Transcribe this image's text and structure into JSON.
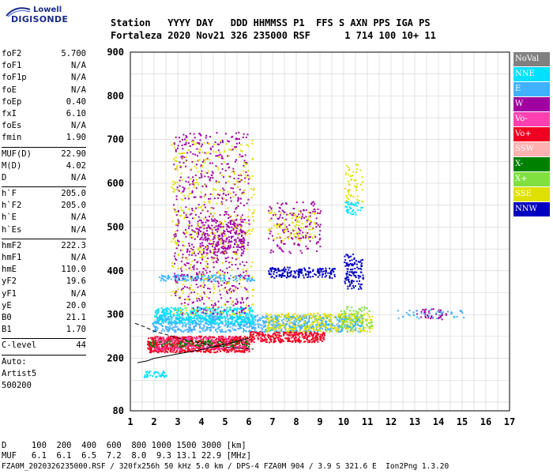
{
  "logo": {
    "line1": "Lowell",
    "line2": "DIGISONDE"
  },
  "header": {
    "line1": "Station   YYYY DAY   DDD HHMMSS P1  FFS S AXN PPS IGA PS",
    "line2": "Fortaleza 2020 Nov21 326 235000 RSF      1 714 100 10+ 11"
  },
  "params": {
    "group1": [
      {
        "k": "foF2",
        "v": "5.700"
      },
      {
        "k": "foF1",
        "v": "N/A"
      },
      {
        "k": "foF1p",
        "v": "N/A"
      },
      {
        "k": "foE",
        "v": "N/A"
      },
      {
        "k": "foEp",
        "v": "0.40"
      },
      {
        "k": "fxI",
        "v": "6.10"
      },
      {
        "k": "foEs",
        "v": "N/A"
      },
      {
        "k": "fmin",
        "v": "1.90"
      }
    ],
    "group2": [
      {
        "k": "MUF(D)",
        "v": "22.90"
      },
      {
        "k": "M(D)",
        "v": "4.02"
      },
      {
        "k": "D",
        "v": "N/A"
      }
    ],
    "group3": [
      {
        "k": "h`F",
        "v": "205.0"
      },
      {
        "k": "h`F2",
        "v": "205.0"
      },
      {
        "k": "h`E",
        "v": "N/A"
      },
      {
        "k": "h`Es",
        "v": "N/A"
      }
    ],
    "group4": [
      {
        "k": "hmF2",
        "v": "222.3"
      },
      {
        "k": "hmF1",
        "v": "N/A"
      },
      {
        "k": "hmE",
        "v": "110.0"
      },
      {
        "k": "yF2",
        "v": "19.6"
      },
      {
        "k": "yF1",
        "v": "N/A"
      },
      {
        "k": "yE",
        "v": "20.0"
      },
      {
        "k": "B0",
        "v": "21.1"
      },
      {
        "k": "B1",
        "v": "1.70"
      }
    ],
    "clevel": {
      "k": "C-level",
      "v": "44"
    },
    "auto": [
      "Auto:",
      "Artist5",
      "500200"
    ]
  },
  "legend": [
    {
      "label": "NoVal",
      "color": "#808080"
    },
    {
      "label": "NNE",
      "color": "#00e0ff"
    },
    {
      "label": "E",
      "color": "#40b0ff"
    },
    {
      "label": "W",
      "color": "#a000a0"
    },
    {
      "label": "Vo-",
      "color": "#ff40b0"
    },
    {
      "label": "Vo+",
      "color": "#f00020"
    },
    {
      "label": "SSW",
      "color": "#ffb0b0"
    },
    {
      "label": "X-",
      "color": "#008000"
    },
    {
      "label": "X+",
      "color": "#80e040"
    },
    {
      "label": "SSE",
      "color": "#e0e000"
    },
    {
      "label": "NNW",
      "color": "#0000c0"
    }
  ],
  "footer": {
    "line1": "D     100  200  400  600  800 1000 1500 3000 [km]",
    "line2": "MUF   6.1  6.1  6.5  7.2  8.0  9.3 13.1 22.9 [MHz]",
    "line3": "FZA0M_2020326235000.RSF / 320fx256h 50 kHz 5.0 km / DPS-4 FZA0M 904 / 3.9 S 321.6 E  Ion2Png 1.3.20"
  },
  "chart_data": {
    "type": "scatter",
    "xlim": [
      1,
      17
    ],
    "ylim": [
      80,
      900
    ],
    "xticks": [
      1,
      2,
      3,
      4,
      5,
      6,
      7,
      8,
      9,
      10,
      11,
      12,
      13,
      14,
      15,
      16,
      17
    ],
    "yticks": [
      80,
      200,
      300,
      400,
      500,
      600,
      700,
      800,
      900
    ],
    "grid": true,
    "clusters": [
      {
        "color": "#40b0ff",
        "x": [
          1.9,
          10.8
        ],
        "y": [
          262,
          300
        ],
        "n": 950
      },
      {
        "color": "#00e0ff",
        "x": [
          2.0,
          6.2
        ],
        "y": [
          280,
          318
        ],
        "n": 420
      },
      {
        "color": "#40b0ff",
        "x": [
          2.2,
          6.2
        ],
        "y": [
          378,
          392
        ],
        "n": 160
      },
      {
        "color": "#00e0ff",
        "x": [
          1.5,
          2.5
        ],
        "y": [
          158,
          172
        ],
        "n": 40
      },
      {
        "color": "#00e0ff",
        "x": [
          10.0,
          10.8
        ],
        "y": [
          530,
          560
        ],
        "n": 40
      },
      {
        "color": "#f00020",
        "x": [
          1.7,
          6.0
        ],
        "y": [
          215,
          252
        ],
        "n": 750
      },
      {
        "color": "#f00020",
        "x": [
          6.0,
          9.2
        ],
        "y": [
          238,
          262
        ],
        "n": 280
      },
      {
        "color": "#ff40b0",
        "x": [
          2.0,
          6.0
        ],
        "y": [
          220,
          250
        ],
        "n": 180
      },
      {
        "color": "#a000a0",
        "x": [
          2.8,
          6.0
        ],
        "y": [
          300,
          720
        ],
        "n": 650
      },
      {
        "color": "#a000a0",
        "x": [
          3.8,
          5.8
        ],
        "y": [
          440,
          520
        ],
        "n": 260
      },
      {
        "color": "#a000a0",
        "x": [
          6.8,
          9.0
        ],
        "y": [
          440,
          560
        ],
        "n": 160
      },
      {
        "color": "#e0e000",
        "x": [
          2.7,
          6.2
        ],
        "y": [
          300,
          700
        ],
        "n": 420
      },
      {
        "color": "#e0e000",
        "x": [
          6.7,
          11.2
        ],
        "y": [
          262,
          305
        ],
        "n": 320
      },
      {
        "color": "#e0e000",
        "x": [
          6.8,
          8.8
        ],
        "y": [
          470,
          540
        ],
        "n": 100
      },
      {
        "color": "#0000c0",
        "x": [
          6.8,
          9.6
        ],
        "y": [
          385,
          410
        ],
        "n": 180
      },
      {
        "color": "#0000c0",
        "x": [
          10.0,
          10.8
        ],
        "y": [
          360,
          440
        ],
        "n": 120
      },
      {
        "color": "#80e040",
        "x": [
          9.8,
          11.2
        ],
        "y": [
          270,
          320
        ],
        "n": 80
      },
      {
        "color": "#008000",
        "x": [
          1.8,
          6.0
        ],
        "y": [
          228,
          242
        ],
        "n": 100
      },
      {
        "color": "#a000a0",
        "x": [
          13.0,
          14.3
        ],
        "y": [
          290,
          315
        ],
        "n": 40
      },
      {
        "color": "#40b0ff",
        "x": [
          12.2,
          15.2
        ],
        "y": [
          292,
          312
        ],
        "n": 40
      },
      {
        "color": "#e0e000",
        "x": [
          10.0,
          10.8
        ],
        "y": [
          560,
          650
        ],
        "n": 50
      }
    ],
    "trace_solid": {
      "x": [
        1.3,
        1.7,
        2.0,
        3.0,
        4.0,
        5.0,
        6.0
      ],
      "y": [
        190,
        194,
        200,
        210,
        220,
        232,
        246
      ]
    },
    "trace_dashed": {
      "x": [
        1.2,
        1.6,
        2.0,
        2.6,
        3.2,
        3.8,
        4.4,
        5.0,
        5.6,
        6.2
      ],
      "y": [
        280,
        272,
        262,
        253,
        244,
        237,
        230,
        226,
        223,
        221
      ]
    }
  }
}
